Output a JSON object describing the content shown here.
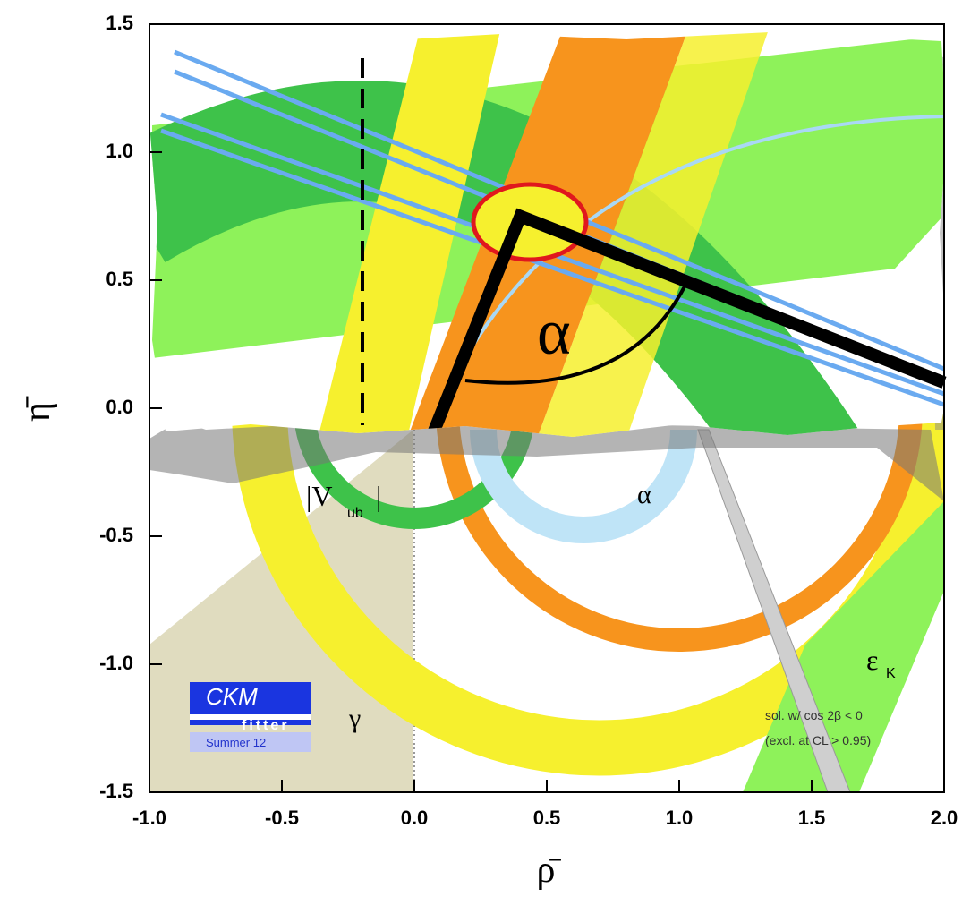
{
  "chart_data": {
    "type": "line",
    "x_label": "ρ̄",
    "y_label": "η̄",
    "x": [
      0.07,
      0.4,
      2.0
    ],
    "y": [
      -0.1,
      0.75,
      0.1
    ],
    "color": "#000000",
    "xlim": [
      -1.0,
      2.0
    ],
    "ylim": [
      -1.5,
      1.5
    ],
    "xticks": [
      {
        "value": -1.0,
        "label": "-1.0"
      },
      {
        "value": -0.5,
        "label": "-0.5"
      },
      {
        "value": 0.0,
        "label": "0.0"
      },
      {
        "value": 0.5,
        "label": "0.5"
      },
      {
        "value": 1.0,
        "label": "1.0"
      },
      {
        "value": 1.5,
        "label": "1.5"
      },
      {
        "value": 2.0,
        "label": "2.0"
      }
    ],
    "yticks": [
      {
        "value": -1.5,
        "label": "-1.5"
      },
      {
        "value": -1.0,
        "label": "-1.0"
      },
      {
        "value": -0.5,
        "label": "-0.5"
      },
      {
        "value": 0.0,
        "label": "0.0"
      },
      {
        "value": 0.5,
        "label": "0.5"
      },
      {
        "value": 1.0,
        "label": "1.0"
      },
      {
        "value": 1.5,
        "label": "1.5"
      }
    ],
    "annotations": [
      "α",
      "|V",
      "ub",
      "|",
      "α",
      "γ",
      "ε",
      "K",
      "CKM",
      "fitter",
      "Summer 12",
      "sol. w/ cos 2β < 0",
      "(excl. at CL > 0.95)"
    ]
  }
}
